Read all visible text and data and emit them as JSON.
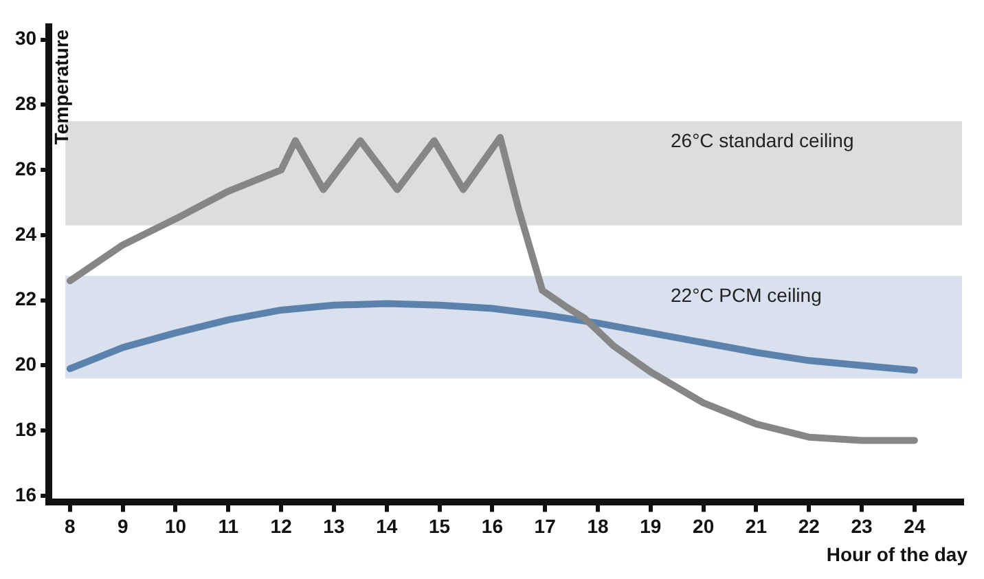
{
  "chart_data": {
    "type": "line",
    "xlabel": "Hour of the day",
    "ylabel": "Temperature",
    "xlim": [
      7.6,
      24.9
    ],
    "xticks": [
      8,
      9,
      10,
      11,
      12,
      13,
      14,
      15,
      16,
      17,
      18,
      19,
      20,
      21,
      22,
      23,
      24
    ],
    "ylim": [
      15.8,
      30.4
    ],
    "yticks": [
      16,
      18,
      20,
      22,
      24,
      26,
      28,
      30
    ],
    "grid": false,
    "legend": false,
    "marker": "none",
    "line_style": "solid",
    "bands": [
      {
        "axis": "y",
        "from": 24.3,
        "to": 27.5,
        "label": "26°C standard ceiling",
        "color": "#b4b4b4"
      },
      {
        "axis": "y",
        "from": 19.6,
        "to": 22.75,
        "label": "22°C PCM ceiling",
        "color": "#a9bcd6"
      }
    ],
    "series": [
      {
        "color": "#868686",
        "x": [
          8,
          9,
          10,
          11,
          12,
          12.27,
          12.8,
          13.5,
          14.2,
          14.9,
          15.45,
          16.15,
          16.5,
          16.95,
          17.4,
          17.75,
          18.3,
          19,
          20,
          21,
          22,
          23,
          24
        ],
        "values": [
          22.6,
          23.7,
          24.5,
          25.35,
          26.0,
          26.9,
          25.4,
          26.9,
          25.4,
          26.9,
          25.4,
          27.0,
          24.8,
          22.3,
          21.8,
          21.45,
          20.6,
          19.8,
          18.85,
          18.2,
          17.8,
          17.7,
          17.7
        ]
      },
      {
        "color": "#5a82ad",
        "x": [
          8,
          9,
          10,
          11,
          12,
          13,
          14,
          15,
          16,
          17,
          18,
          19,
          20,
          21,
          22,
          23,
          24
        ],
        "values": [
          19.9,
          20.55,
          21.0,
          21.4,
          21.7,
          21.85,
          21.9,
          21.85,
          21.75,
          21.55,
          21.3,
          21.0,
          20.7,
          20.4,
          20.15,
          20.0,
          19.85
        ]
      }
    ]
  }
}
